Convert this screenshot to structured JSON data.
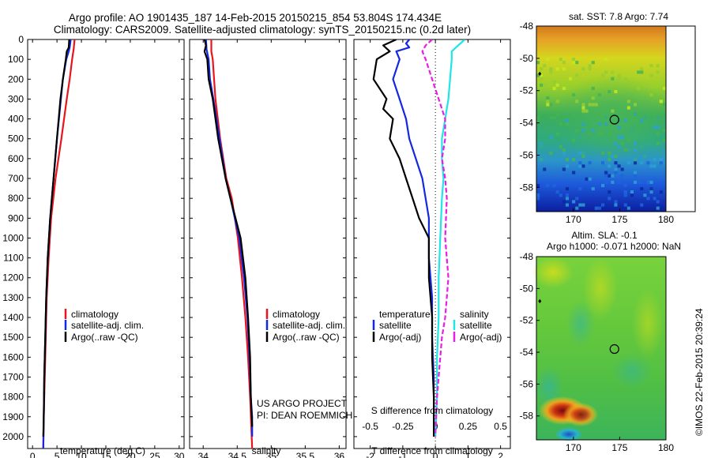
{
  "title": {
    "line1": "Argo profile: AO 1901435_187 14-Feb-2015 20150215_854 53.804S 174.434E",
    "line2": "Climatology: CARS2009. Satellite-adjusted climatology: synTS_20150215.nc (0.2d later)"
  },
  "credits": {
    "project": "US ARGO PROJECT",
    "pi": "PI: DEAN ROEMMICH",
    "stamp": "©IMOS 22-Feb-2015 20:39:24"
  },
  "colors": {
    "climatology": "#e8141e",
    "satellite": "#1428e0",
    "argo": "#000000",
    "satellite_salinity": "#1ee6e6",
    "argo_adj_salinity": "#e61ee6"
  },
  "chart_data": [
    {
      "type": "line",
      "name": "temperature-profile",
      "xlabel": "temperature (deg C)",
      "ylabel": "",
      "xlim": [
        -1,
        31
      ],
      "ylim": [
        2060,
        0
      ],
      "xticks": [
        0,
        5,
        10,
        15,
        20,
        25,
        30
      ],
      "yticks": [
        0,
        100,
        200,
        300,
        400,
        500,
        600,
        700,
        800,
        900,
        1000,
        1100,
        1200,
        1300,
        1400,
        1500,
        1600,
        1700,
        1800,
        1900,
        2000
      ],
      "legend": [
        "climatology",
        "satellite-adj. clim.",
        "Argo(..raw -QC)"
      ],
      "series": [
        {
          "name": "climatology",
          "color": "#e8141e",
          "depth": [
            0,
            50,
            100,
            200,
            300,
            500,
            700,
            900,
            1100,
            1300,
            1500,
            1700,
            1900,
            2060
          ],
          "values": [
            8.6,
            8.4,
            8.1,
            7.6,
            7.0,
            5.9,
            4.7,
            3.8,
            3.3,
            2.9,
            2.7,
            2.5,
            2.3,
            2.2
          ]
        },
        {
          "name": "satellite-adj. clim.",
          "color": "#1428e0",
          "depth": [
            0,
            40,
            60,
            100,
            200,
            300,
            500,
            700,
            900,
            1100,
            1300,
            1500,
            1700,
            1900,
            2060
          ],
          "values": [
            7.8,
            7.6,
            7.4,
            6.9,
            6.2,
            5.8,
            5.0,
            4.3,
            3.6,
            3.1,
            2.8,
            2.6,
            2.4,
            2.3,
            2.2
          ]
        },
        {
          "name": "Argo(..raw -QC)",
          "color": "#000000",
          "depth": [
            0,
            40,
            60,
            100,
            200,
            300,
            500,
            700,
            900,
            1100,
            1300,
            1500,
            1700,
            1900,
            2000
          ],
          "values": [
            7.5,
            7.4,
            7.0,
            6.8,
            6.2,
            5.7,
            5.0,
            4.3,
            3.6,
            3.1,
            2.8,
            2.6,
            2.4,
            2.3,
            2.2
          ]
        }
      ]
    },
    {
      "type": "line",
      "name": "salinity-profile",
      "xlabel": "salinity",
      "xlim": [
        33.8,
        36.1
      ],
      "ylim": [
        2060,
        0
      ],
      "xticks": [
        34,
        34.5,
        35,
        35.5,
        36
      ],
      "xticklabels": [
        "34",
        "34.5",
        "35",
        "35.5",
        "36"
      ],
      "legend": [
        "climatology",
        "satellite-adj. clim.",
        "Argo(..raw -QC)"
      ],
      "series": [
        {
          "name": "climatology",
          "color": "#e8141e",
          "depth": [
            0,
            60,
            100,
            200,
            300,
            500,
            700,
            800,
            1000,
            1200,
            1400,
            1600,
            1800,
            2060
          ],
          "values": [
            34.12,
            34.12,
            34.14,
            34.16,
            34.18,
            34.25,
            34.34,
            34.42,
            34.51,
            34.57,
            34.62,
            34.66,
            34.69,
            34.72
          ]
        },
        {
          "name": "satellite-adj. clim.",
          "color": "#1428e0",
          "depth": [
            0,
            50,
            100,
            200,
            300,
            500,
            700,
            800,
            1000,
            1200,
            1400,
            1600,
            1800,
            1900,
            2000
          ],
          "values": [
            34.04,
            34.05,
            34.08,
            34.1,
            34.15,
            34.24,
            34.33,
            34.4,
            34.53,
            34.6,
            34.65,
            34.68,
            34.7,
            34.72,
            34.72
          ]
        },
        {
          "name": "Argo(..raw -QC)",
          "color": "#000000",
          "depth": [
            0,
            30,
            60,
            100,
            200,
            300,
            500,
            700,
            800,
            1000,
            1200,
            1400,
            1600,
            1800,
            1950
          ],
          "values": [
            34.02,
            34.04,
            34.02,
            34.06,
            34.08,
            34.14,
            34.22,
            34.33,
            34.4,
            34.55,
            34.62,
            34.66,
            34.69,
            34.7,
            34.72
          ]
        }
      ]
    },
    {
      "type": "line",
      "name": "difference-profile",
      "xlabel": "T difference from climatology",
      "xlabel_top": "S difference from climatology",
      "xlim": [
        -2.5,
        2.3
      ],
      "ylim": [
        2060,
        0
      ],
      "xticks": [
        -2,
        -1,
        0,
        1,
        2
      ],
      "xticks_top": [
        -0.5,
        -0.25,
        0,
        0.25,
        0.5
      ],
      "legend_temperature_title": "temperature",
      "legend_salinity_title": "salinity",
      "legend": [
        "satellite",
        "Argo(-adj)",
        "satellite",
        "Argo(-adj)"
      ],
      "series": [
        {
          "name": "temperature satellite",
          "color": "#1428e0",
          "depth": [
            0,
            20,
            40,
            60,
            100,
            200,
            300,
            400,
            500,
            700,
            900,
            1100,
            1300,
            1500,
            1700,
            1900,
            2000
          ],
          "values": [
            -0.8,
            -0.9,
            -0.8,
            -1.2,
            -1.1,
            -1.3,
            -1.1,
            -0.9,
            -0.8,
            -0.4,
            -0.2,
            -0.2,
            -0.1,
            -0.1,
            -0.05,
            -0.05,
            -0.05
          ]
        },
        {
          "name": "temperature Argo(-adj)",
          "color": "#000000",
          "depth": [
            0,
            30,
            60,
            100,
            200,
            300,
            350,
            400,
            500,
            600,
            700,
            800,
            900,
            1000,
            1200,
            1400,
            1600,
            1800,
            2000
          ],
          "values": [
            -1.2,
            -1.6,
            -1.4,
            -1.8,
            -1.9,
            -1.5,
            -1.6,
            -1.3,
            -1.4,
            -1.1,
            -0.9,
            -0.7,
            -0.5,
            -0.2,
            -0.2,
            -0.1,
            -0.1,
            -0.05,
            -0.05
          ]
        },
        {
          "name": "salinity satellite",
          "color": "#1ee6e6",
          "depth": [
            0,
            30,
            60,
            100,
            200,
            300,
            400,
            500,
            600,
            700,
            800,
            1000,
            1200,
            1400,
            1600,
            1800,
            2000
          ],
          "values": [
            0.9,
            0.7,
            0.5,
            0.5,
            0.45,
            0.4,
            0.3,
            0.2,
            0.2,
            0.25,
            0.2,
            0.15,
            0.1,
            0.1,
            0.05,
            0.05,
            0.0
          ]
        },
        {
          "name": "salinity Argo(-adj)",
          "color": "#e61ee6",
          "depth": [
            0,
            30,
            60,
            100,
            200,
            300,
            400,
            500,
            600,
            700,
            800,
            1000,
            1200,
            1400,
            1500,
            1600,
            1800,
            2000
          ],
          "values": [
            -0.1,
            -0.3,
            -0.4,
            -0.3,
            -0.1,
            0.1,
            0.3,
            0.3,
            0.2,
            0.3,
            0.35,
            0.3,
            0.4,
            0.3,
            0.2,
            0.15,
            0.05,
            0.0
          ]
        }
      ]
    },
    {
      "type": "heatmap",
      "name": "sst-map",
      "title": "sat. SST: 7.8  Argo: 7.74",
      "xlim": [
        166,
        180
      ],
      "ylim": [
        -59.5,
        -48
      ],
      "xticks": [
        170,
        175,
        180
      ],
      "yticks": [
        -48,
        -50,
        -52,
        -54,
        -56,
        -58
      ],
      "marker": {
        "lon": 174.43,
        "lat": -53.8
      }
    },
    {
      "type": "heatmap",
      "name": "sla-map",
      "title_line1": "Altim. SLA: -0.1",
      "title_line2": "Argo h1000: -0.071 h2000: NaN",
      "xlim": [
        166,
        180
      ],
      "ylim": [
        -59.5,
        -48
      ],
      "xticks": [
        170,
        175,
        180
      ],
      "yticks": [
        -48,
        -50,
        -52,
        -54,
        -56,
        -58
      ],
      "marker": {
        "lon": 174.43,
        "lat": -53.8
      }
    }
  ]
}
